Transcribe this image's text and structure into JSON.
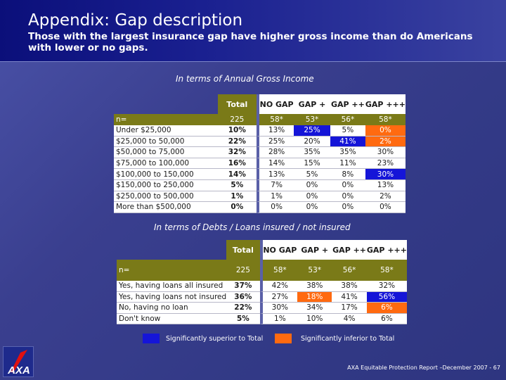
{
  "title": "Appendix: Gap description",
  "subtitle": "Those with the largest insurance gap have higher gross income than do Americans with lower or no gaps.",
  "colors": {
    "superior": "#1515d8",
    "inferior": "#ff6a10",
    "total_header": "#7a7a18"
  },
  "table1": {
    "caption": "In terms of Annual Gross Income",
    "columns": [
      "Total",
      "NO GAP",
      "GAP +",
      "GAP ++",
      "GAP +++"
    ],
    "n_row": {
      "label": "n=",
      "values": [
        "225",
        "58*",
        "53*",
        "56*",
        "58*"
      ]
    },
    "rows": [
      {
        "label": "Under $25,000",
        "values": [
          "10%",
          "13%",
          "25%",
          "5%",
          "0%"
        ],
        "hl": [
          "",
          "",
          "blue",
          "",
          "orange"
        ]
      },
      {
        "label": "$25,000 to 50,000",
        "values": [
          "22%",
          "25%",
          "20%",
          "41%",
          "2%"
        ],
        "hl": [
          "",
          "",
          "",
          "blue",
          "orange"
        ]
      },
      {
        "label": "$50,000 to 75,000",
        "values": [
          "32%",
          "28%",
          "35%",
          "35%",
          "30%"
        ],
        "hl": [
          "",
          "",
          "",
          "",
          ""
        ]
      },
      {
        "label": "$75,000 to 100,000",
        "values": [
          "16%",
          "14%",
          "15%",
          "11%",
          "23%"
        ],
        "hl": [
          "",
          "",
          "",
          "",
          ""
        ]
      },
      {
        "label": "$100,000 to 150,000",
        "values": [
          "14%",
          "13%",
          "5%",
          "8%",
          "30%"
        ],
        "hl": [
          "",
          "",
          "",
          "",
          "blue"
        ]
      },
      {
        "label": "$150,000 to 250,000",
        "values": [
          "5%",
          "7%",
          "0%",
          "0%",
          "13%"
        ],
        "hl": [
          "",
          "",
          "",
          "",
          ""
        ]
      },
      {
        "label": "$250,000 to 500,000",
        "values": [
          "1%",
          "1%",
          "0%",
          "0%",
          "2%"
        ],
        "hl": [
          "",
          "",
          "",
          "",
          ""
        ]
      },
      {
        "label": "More than $500,000",
        "values": [
          "0%",
          "0%",
          "0%",
          "0%",
          "0%"
        ],
        "hl": [
          "",
          "",
          "",
          "",
          ""
        ]
      }
    ]
  },
  "table2": {
    "caption": "In terms of Debts / Loans insured / not insured",
    "columns": [
      "Total",
      "NO GAP",
      "GAP +",
      "GAP ++",
      "GAP +++"
    ],
    "n_row": {
      "label": "n=",
      "values": [
        "225",
        "58*",
        "53*",
        "56*",
        "58*"
      ]
    },
    "rows": [
      {
        "label": "Yes, having loans all insured",
        "values": [
          "37%",
          "42%",
          "38%",
          "38%",
          "32%"
        ],
        "hl": [
          "",
          "",
          "",
          "",
          ""
        ]
      },
      {
        "label": "Yes, having loans not insured",
        "values": [
          "36%",
          "27%",
          "18%",
          "41%",
          "56%"
        ],
        "hl": [
          "",
          "",
          "orange",
          "",
          "blue"
        ]
      },
      {
        "label": "No, having no loan",
        "values": [
          "22%",
          "30%",
          "34%",
          "17%",
          "6%"
        ],
        "hl": [
          "",
          "",
          "",
          "",
          "orange"
        ]
      },
      {
        "label": "Don't know",
        "values": [
          "5%",
          "1%",
          "10%",
          "4%",
          "6%"
        ],
        "hl": [
          "",
          "",
          "",
          "",
          ""
        ]
      }
    ]
  },
  "legend": {
    "superior": "Significantly superior to Total",
    "inferior": "Significantly inferior to Total"
  },
  "footer": "AXA Equitable Protection Report –December 2007 - 67",
  "logo_icon": "axa-logo-icon"
}
